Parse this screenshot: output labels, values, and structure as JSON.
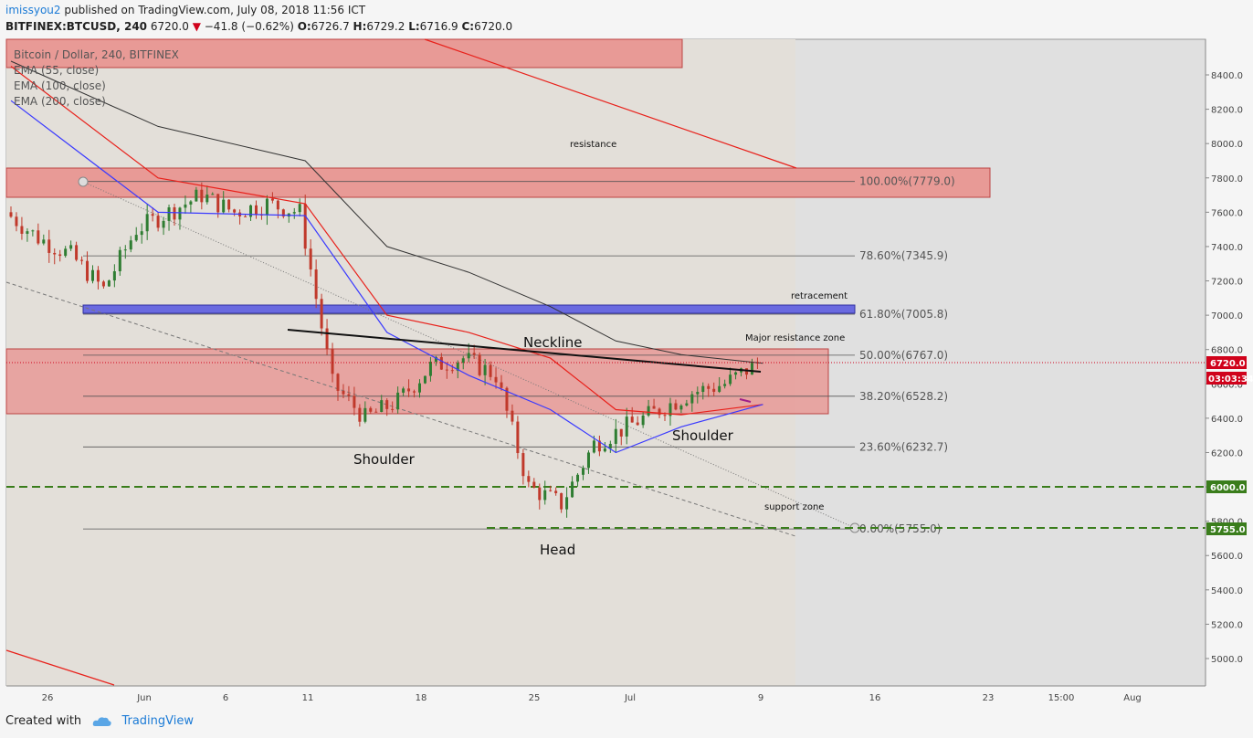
{
  "header": {
    "user": "imissyou2",
    "published": "published on TradingView.com, July 08, 2018 11:56 ICT",
    "symbol": "BITFINEX:BTCUSD, 240",
    "last": "6720.0",
    "change": "−41.8 (−0.62%)",
    "o_label": "O:",
    "o_val": "6726.7",
    "h_label": "H:",
    "h_val": "6729.2",
    "l_label": "L:",
    "l_val": "6716.9",
    "c_label": "C:",
    "c_val": "6720.0"
  },
  "legend": {
    "title": "Bitcoin / Dollar, 240, BITFINEX",
    "ema55": "EMA (55, close)",
    "ema100": "EMA (100, close)",
    "ema200": "EMA (200, close)"
  },
  "colors": {
    "ema55": "#3a3aff",
    "ema100": "#e8211b",
    "ema200": "#333333",
    "zone_red": "#e57373",
    "zone_blue": "#6a6ae0",
    "support_green": "#3a7d1c",
    "bull": "#2f7d32",
    "bear": "#c0392b",
    "price_tag": "#d0021b"
  },
  "annotations": {
    "resistance": "resistance",
    "retracement": "retracement",
    "major_resistance": "Major resistance zone",
    "neckline": "Neckline",
    "shoulder_left": "Shoulder",
    "shoulder_right": "Shoulder",
    "head": "Head",
    "support_zone": "support zone"
  },
  "fib_levels": [
    {
      "label": "100.00%(7779.0)",
      "price": 7779.0
    },
    {
      "label": "78.60%(7345.9)",
      "price": 7345.9
    },
    {
      "label": "61.80%(7005.8)",
      "price": 7005.8
    },
    {
      "label": "50.00%(6767.0)",
      "price": 6767.0
    },
    {
      "label": "38.20%(6528.2)",
      "price": 6528.2
    },
    {
      "label": "23.60%(6232.7)",
      "price": 6232.7
    },
    {
      "label": "0.00%(5755.0)",
      "price": 5755.0
    }
  ],
  "price_tags": {
    "last": "6720.0",
    "timer": "03:03:34",
    "support_top": "6000.0",
    "support_bottom": "5755.0"
  },
  "footer": {
    "created_with": "Created with",
    "brand": "TradingView"
  },
  "chart_data": {
    "type": "line",
    "title": "Bitcoin / Dollar, 240, BITFINEX",
    "y_axis_ticks": [
      8400,
      8200,
      8000,
      7800,
      7600,
      7400,
      7200,
      7000,
      6800,
      6600,
      6400,
      6200,
      6000,
      5800,
      5600,
      5400,
      5200,
      5000
    ],
    "y_axis_tick_labels": [
      "8400.0",
      "8200.0",
      "8000.0",
      "7800.0",
      "7600.0",
      "7400.0",
      "7200.0",
      "7000.0",
      "6800.0",
      "6600.0",
      "6400.0",
      "6200.0",
      "6000.0",
      "5800.0",
      "5600.0",
      "5400.0",
      "5200.0",
      "5000.0"
    ],
    "x_axis_ticks": [
      "26",
      "Jun",
      "6",
      "11",
      "18",
      "25",
      "Jul",
      "9",
      "16",
      "23",
      "15:00",
      "Aug"
    ],
    "ylim": [
      4810,
      8500
    ],
    "grid": false,
    "legend_position": "top-left",
    "series": [
      {
        "name": "BTCUSD",
        "x": [
          "May 23",
          "May 25",
          "May 27",
          "May 29",
          "May 31",
          "Jun 2",
          "Jun 4",
          "Jun 6",
          "Jun 8",
          "Jun 10",
          "Jun 12",
          "Jun 14",
          "Jun 16",
          "Jun 18",
          "Jun 20",
          "Jun 22",
          "Jun 24",
          "Jun 26",
          "Jun 28",
          "Jun 30",
          "Jul 2",
          "Jul 4",
          "Jul 6",
          "Jul 8"
        ],
        "values": [
          7600,
          7450,
          7350,
          7150,
          7500,
          7600,
          7700,
          7600,
          7650,
          7600,
          6600,
          6400,
          6500,
          6700,
          6750,
          6650,
          6000,
          5900,
          6250,
          6350,
          6450,
          6550,
          6600,
          6720
        ]
      },
      {
        "name": "EMA (55, close)",
        "x": [
          "May 23",
          "Jun 1",
          "Jun 10",
          "Jun 15",
          "Jun 20",
          "Jun 25",
          "Jun 29",
          "Jul 3",
          "Jul 8"
        ],
        "values": [
          8250,
          7600,
          7580,
          6900,
          6650,
          6450,
          6200,
          6350,
          6480
        ]
      },
      {
        "name": "EMA (100, close)",
        "x": [
          "May 23",
          "Jun 1",
          "Jun 10",
          "Jun 15",
          "Jun 20",
          "Jun 25",
          "Jun 29",
          "Jul 3",
          "Jul 8"
        ],
        "values": [
          8450,
          7800,
          7650,
          7000,
          6900,
          6750,
          6450,
          6420,
          6480
        ]
      },
      {
        "name": "EMA (200, close)",
        "x": [
          "May 23",
          "Jun 1",
          "Jun 10",
          "Jun 15",
          "Jun 20",
          "Jun 25",
          "Jun 29",
          "Jul 3",
          "Jul 8"
        ],
        "values": [
          8480,
          8100,
          7900,
          7400,
          7250,
          7050,
          6850,
          6770,
          6720
        ]
      }
    ],
    "zones": [
      {
        "label": "resistance",
        "from": 7700,
        "to": 7870
      },
      {
        "label": "retracement",
        "from": 7000,
        "to": 7050
      },
      {
        "label": "Major resistance zone",
        "from": 6420,
        "to": 6800
      },
      {
        "label": "support zone",
        "lines": [
          6000,
          5755
        ]
      }
    ]
  }
}
